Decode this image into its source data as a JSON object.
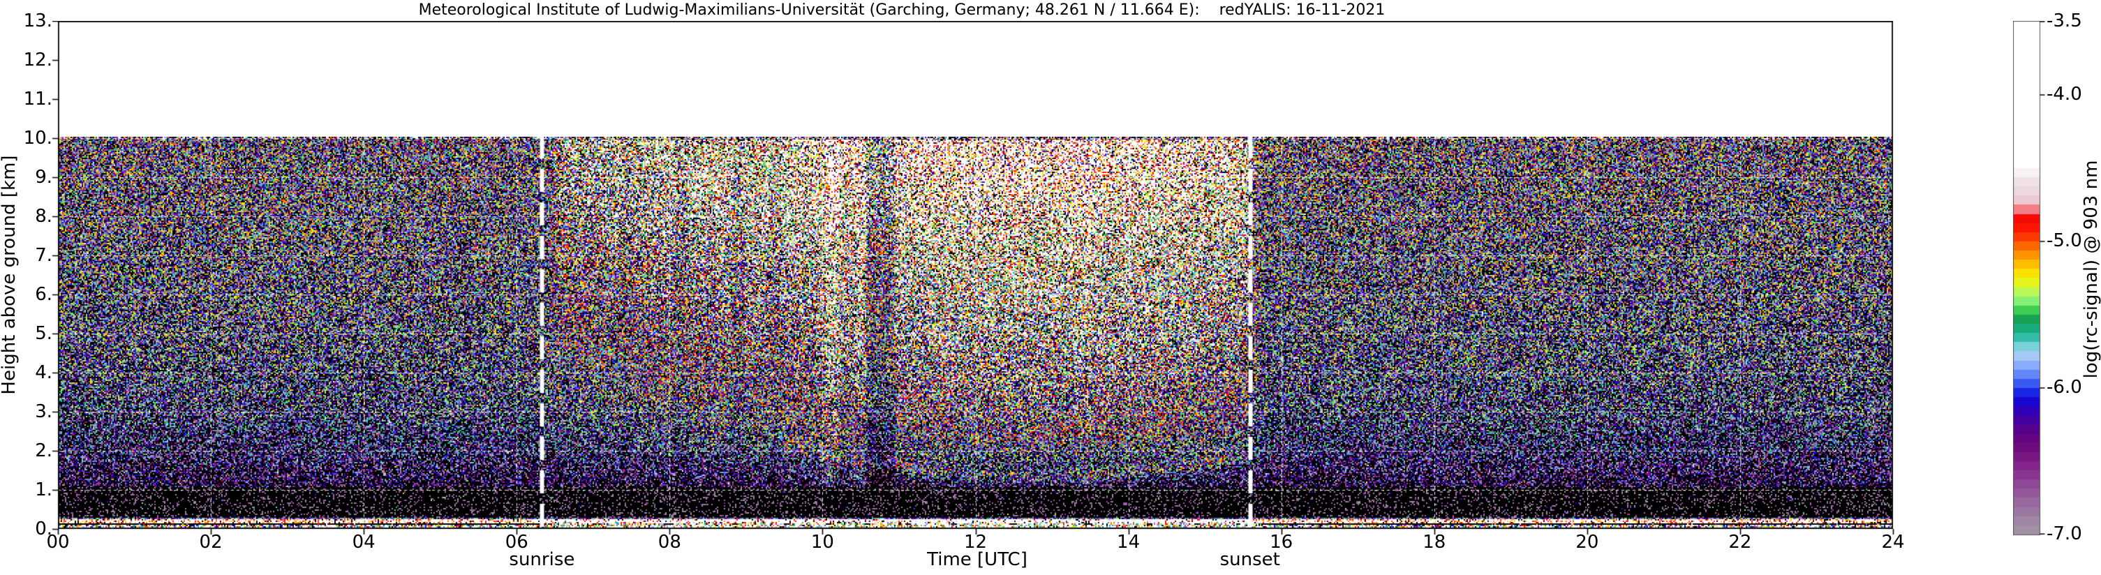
{
  "figure": {
    "title": "Meteorological Institute of Ludwig-Maximilians-Universität (Garching, Germany; 48.261 N / 11.664 E):    redYALIS: 16-11-2021",
    "institute": "Meteorological Institute of Ludwig-Maximilians-Universität",
    "location": "Garching, Germany",
    "coordinates": "48.261 N / 11.664 E",
    "instrument": "redYALIS",
    "date": "16-11-2021"
  },
  "chart_data": {
    "type": "heatmap",
    "title": "Meteorological Institute of Ludwig-Maximilians-Universität (Garching, Germany; 48.261 N / 11.664 E):    redYALIS: 16-11-2021",
    "xlabel": "Time [UTC]",
    "ylabel": "Height above ground [km]",
    "xlim": [
      0,
      24
    ],
    "ylim": [
      0,
      13
    ],
    "data_top_km": 10.05,
    "grid": {
      "on": true,
      "style": "white dashed",
      "x_interval_hours": 2,
      "y_interval_km": 1
    },
    "x_ticks": {
      "values": [
        0,
        2,
        4,
        6,
        8,
        10,
        12,
        14,
        16,
        18,
        20,
        22,
        24
      ],
      "labels": [
        "00",
        "02",
        "04",
        "06",
        "08",
        "10",
        "12",
        "14",
        "16",
        "18",
        "20",
        "22",
        "24"
      ]
    },
    "y_ticks": {
      "values": [
        0,
        1,
        2,
        3,
        4,
        5,
        6,
        7,
        8,
        9,
        10,
        11,
        12,
        13
      ],
      "labels": [
        "0.",
        "1.",
        "2.",
        "3.",
        "4.",
        "5.",
        "6.",
        "7.",
        "8.",
        "9.",
        "10.",
        "11.",
        "12.",
        "13."
      ]
    },
    "annotations": [
      {
        "label": "sunrise",
        "time_utc": 6.33,
        "style": "thick white dashed vertical line"
      },
      {
        "label": "sunset",
        "time_utc": 15.59,
        "style": "thick white dashed vertical line"
      }
    ],
    "colorbar": {
      "label": "log(rc-signal) @ 903 nm",
      "min": -7.0,
      "max": -3.5,
      "ticks": [
        {
          "value": -3.5,
          "label": "-3.5"
        },
        {
          "value": -4.0,
          "label": "-4.0"
        },
        {
          "value": -5.0,
          "label": "-5.0"
        },
        {
          "value": -6.0,
          "label": "-6.0"
        },
        {
          "value": -7.0,
          "label": "-7.0"
        }
      ],
      "band_step": 0.0625,
      "stops": [
        [
          -7.0,
          "#a295a8"
        ],
        [
          -6.9,
          "#9d86a4"
        ],
        [
          -6.78,
          "#98699e"
        ],
        [
          -6.64,
          "#8e4396"
        ],
        [
          -6.52,
          "#82228a"
        ],
        [
          -6.42,
          "#720d7c"
        ],
        [
          -6.32,
          "#5f0383"
        ],
        [
          -6.23,
          "#48009f"
        ],
        [
          -6.14,
          "#2a00c0"
        ],
        [
          -6.06,
          "#0f0ade"
        ],
        [
          -5.99,
          "#2b49ef"
        ],
        [
          -5.92,
          "#5c7ffa"
        ],
        [
          -5.85,
          "#86a8fd"
        ],
        [
          -5.78,
          "#a7c9f7"
        ],
        [
          -5.71,
          "#72d2d4"
        ],
        [
          -5.65,
          "#2cbaa2"
        ],
        [
          -5.59,
          "#16aa78"
        ],
        [
          -5.53,
          "#17a352"
        ],
        [
          -5.47,
          "#3fcc52"
        ],
        [
          -5.42,
          "#79ef79"
        ],
        [
          -5.37,
          "#a5f768"
        ],
        [
          -5.32,
          "#ccf648"
        ],
        [
          -5.27,
          "#eef313"
        ],
        [
          -5.21,
          "#fede00"
        ],
        [
          -5.15,
          "#ffb900"
        ],
        [
          -5.09,
          "#ff9000"
        ],
        [
          -5.03,
          "#ff6600"
        ],
        [
          -4.97,
          "#fc3a00"
        ],
        [
          -4.9,
          "#fa1203"
        ],
        [
          -4.82,
          "#f50707"
        ],
        [
          -4.76,
          "#efc0ca"
        ],
        [
          -4.68,
          "#ecd5dc"
        ],
        [
          -4.58,
          "#f0e3e7"
        ],
        [
          -4.48,
          "#ffffff"
        ]
      ]
    },
    "features": [
      "Night-time background: dark multicolour speckle noise (green/teal/blue dots aloft, blue/purple below 3 km, sparse red specks)",
      "Daytime solar-background plume between the sunrise and sunset lines, widest aloft: white/pink above ~7.5 km, red ~6-7 km, orange ~5-6 km, yellow ~4-4.5 km, green ~3-4 km, blue ~1.5-2.5 km around midday",
      "Black low-signal overlap band below ~1.1 km at all times, with mauve speckle fringe",
      "Thin near-ground echo stripes below ~0.3 km: white band near 0.2 km and vivid multicolour line near 0.1 km, brightening during daytime",
      "Dense multicolour noise line at the 10 km data top edge",
      "Bright white vertical streak near 10:05 UTC and darker vertical streak near 10:40 UTC"
    ],
    "field_model": {
      "seed": 42,
      "noise_amplitude": 1.08,
      "pepper_probability": 0.21,
      "pepper_depth": 2.4,
      "outlier_probability": 0.015,
      "outlier_boost": 1.35,
      "day_window_utc": [
        6.33,
        15.45
      ],
      "plume_center_utc": 12.6,
      "night_profile": [
        [
          1.08,
          -6.95
        ],
        [
          1.6,
          -6.75
        ],
        [
          2.2,
          -6.55
        ],
        [
          3,
          -6.35
        ],
        [
          4,
          -6.25
        ],
        [
          5.5,
          -6.15
        ],
        [
          7.5,
          -6.06
        ],
        [
          9.5,
          -6.0
        ],
        [
          10.06,
          -6.0
        ]
      ],
      "day_profile": [
        [
          1.08,
          -6.85
        ],
        [
          1.5,
          -6.55
        ],
        [
          1.9,
          -6.18
        ],
        [
          2.2,
          -5.98
        ],
        [
          2.6,
          -5.8
        ],
        [
          3.2,
          -5.58
        ],
        [
          3.8,
          -5.44
        ],
        [
          4.3,
          -5.31
        ],
        [
          5.0,
          -5.15
        ],
        [
          6.0,
          -5.0
        ],
        [
          6.8,
          -4.87
        ],
        [
          7.5,
          -4.68
        ],
        [
          8.4,
          -4.45
        ],
        [
          9.2,
          -4.32
        ],
        [
          10.06,
          -4.3
        ]
      ],
      "sigma_base_h": 3.2,
      "sigma_per_km": 0.3,
      "overlap_band_km": [
        0.3,
        1.08
      ],
      "overlap_base": -7.8,
      "top_band_km": 9.96,
      "bl_layer": {
        "window_utc": [
          9.2,
          15.2
        ],
        "center_utc": 12.8,
        "min_height_km": 1.35,
        "curvature": 0.5,
        "spread_h": 2.6,
        "width_km": 0.17,
        "boost": 0.55
      },
      "dark_columns": [
        {
          "utc": [
            10.55,
            10.92
          ],
          "depth": 0.75
        },
        {
          "utc": [
            8.05,
            8.22
          ],
          "depth": 0.4
        },
        {
          "utc": [
            8.78,
            8.95
          ],
          "depth": 0.4
        },
        {
          "utc": [
            9.28,
            9.42
          ],
          "depth": 0.35
        },
        {
          "utc": [
            7.35,
            7.5
          ],
          "depth": 0.3
        }
      ],
      "bright_columns": [
        {
          "utc": [
            10.02,
            10.2
          ],
          "boost": 0.5
        },
        {
          "utc": [
            10.38,
            10.52
          ],
          "boost": 0.25
        },
        {
          "utc": [
            13.3,
            13.5
          ],
          "boost": 0.15
        }
      ],
      "ground_layers": {
        "purple_line_km": [
          0.265,
          0.3
        ],
        "white_band_km": [
          0.145,
          0.265
        ],
        "gap_km": [
          0.115,
          0.145
        ],
        "surface_line_km": [
          0.045,
          0.115
        ],
        "bottom_line_km": [
          0.0,
          0.045
        ]
      }
    }
  }
}
